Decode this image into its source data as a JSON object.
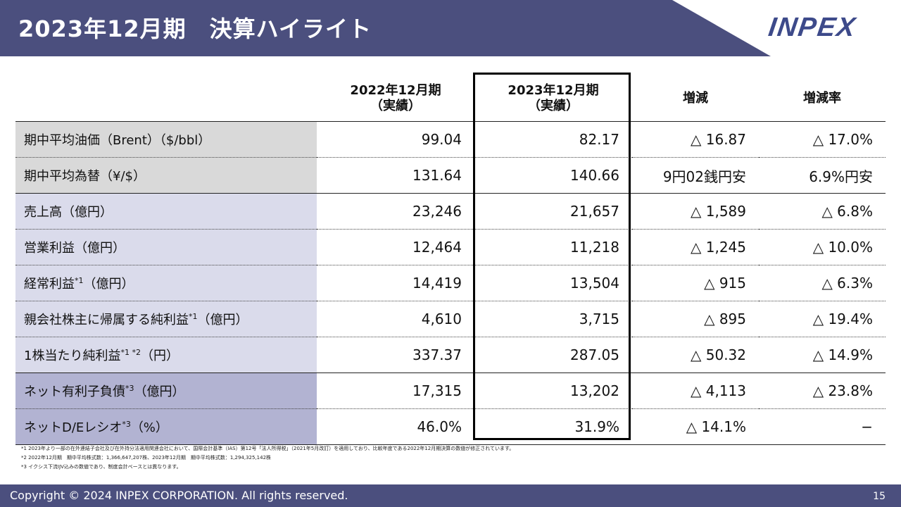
{
  "header": {
    "title": "2023年12月期　決算ハイライト",
    "logo_text": "INPEX",
    "bar_color": "#4b4f7e"
  },
  "table": {
    "columns": [
      {
        "line1": "2022年12月期",
        "line2": "（実績）"
      },
      {
        "line1": "2023年12月期",
        "line2": "（実績）"
      },
      {
        "line1": "増減",
        "line2": ""
      },
      {
        "line1": "増減率",
        "line2": ""
      }
    ],
    "rows": [
      {
        "label": "期中平均油価（Brent）（$/bbl）",
        "sup": "",
        "suffix": "",
        "v2022": "99.04",
        "v2023": "82.17",
        "change": "△ 16.87",
        "rate": "△ 17.0%"
      },
      {
        "label": "期中平均為替（¥/$）",
        "sup": "",
        "suffix": "",
        "v2022": "131.64",
        "v2023": "140.66",
        "change": "9円02銭円安",
        "rate": "6.9%円安"
      },
      {
        "label": "売上高（億円）",
        "sup": "",
        "suffix": "",
        "v2022": "23,246",
        "v2023": "21,657",
        "change": "△ 1,589",
        "rate": "△ 6.8%"
      },
      {
        "label": "営業利益（億円）",
        "sup": "",
        "suffix": "",
        "v2022": "12,464",
        "v2023": "11,218",
        "change": "△ 1,245",
        "rate": "△ 10.0%"
      },
      {
        "label": "経常利益",
        "sup": "*1",
        "suffix": "（億円）",
        "v2022": "14,419",
        "v2023": "13,504",
        "change": "△ 915",
        "rate": "△ 6.3%"
      },
      {
        "label": "親会社株主に帰属する純利益",
        "sup": "*1",
        "suffix": "（億円）",
        "v2022": "4,610",
        "v2023": "3,715",
        "change": "△ 895",
        "rate": "△ 19.4%"
      },
      {
        "label": "1株当たり純利益",
        "sup": "*1 *2",
        "suffix": "（円）",
        "v2022": "337.37",
        "v2023": "287.05",
        "change": "△ 50.32",
        "rate": "△ 14.9%"
      },
      {
        "label": "ネット有利子負債",
        "sup": "*3",
        "suffix": "（億円）",
        "v2022": "17,315",
        "v2023": "13,202",
        "change": "△ 4,113",
        "rate": "△ 23.8%"
      },
      {
        "label": "ネットD/Eレシオ",
        "sup": "*3",
        "suffix": "（%）",
        "v2022": "46.0%",
        "v2023": "31.9%",
        "change": "△ 14.1%",
        "rate": "−"
      }
    ]
  },
  "notes": [
    "*1 2023年より一部の在外連結子会社及び在外持分法適用関連会社において、国際会計基準（IAS）第12号「法人所得税」（2021年5月改訂）を適用しており、比較年度である2022年12月期決算の数値が修正されています。",
    "*2 2022年12月期　期中平均株式数：1,366,647,207株、2023年12月期　期中平均株式数：1,294,325,142株",
    "*3 イクシス下流IJV込みの数値であり、制度会計ベースとは異なります。"
  ],
  "footer": {
    "copyright": "Copyright © 2024 INPEX CORPORATION. All rights reserved.",
    "page_number": "15"
  }
}
